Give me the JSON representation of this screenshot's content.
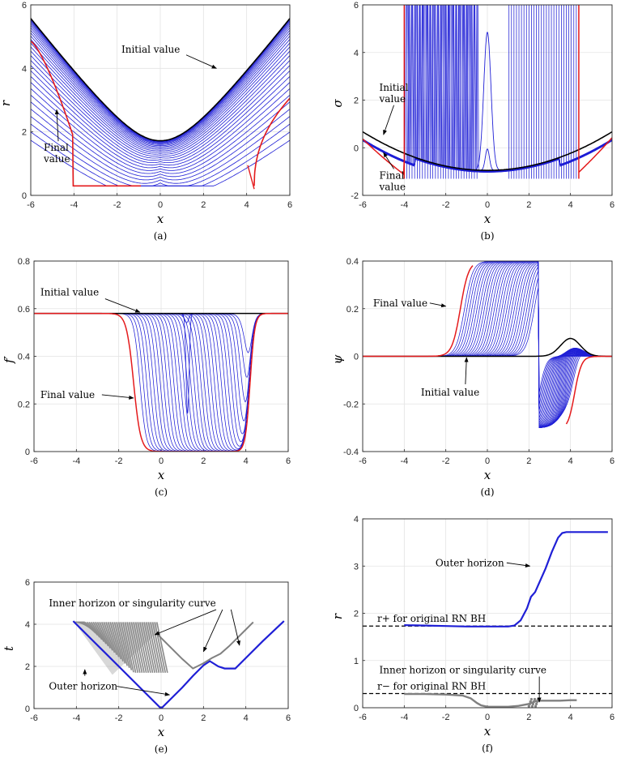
{
  "chart_data": [
    {
      "id": "a",
      "type": "line",
      "caption": "(a)",
      "xlabel": "x",
      "ylabel": "r",
      "xlim": [
        -6,
        6
      ],
      "ylim": [
        0,
        6
      ],
      "xticks": [
        "-6",
        "-4",
        "-2",
        "0",
        "2",
        "4",
        "6"
      ],
      "yticks": [
        "0",
        "2",
        "4",
        "6"
      ],
      "annotations": [
        {
          "text": "Initial value",
          "x": -1.8,
          "y": 4.5,
          "ax": 2.6,
          "ay": 4.0
        },
        {
          "lines": [
            "Final",
            "value"
          ],
          "x": -5.4,
          "y": 1.4,
          "ax": -4.8,
          "ay": 2.7
        }
      ]
    },
    {
      "id": "b",
      "type": "line",
      "caption": "(b)",
      "xlabel": "x",
      "ylabel": "σ",
      "xlim": [
        -6,
        6
      ],
      "ylim": [
        -2,
        6
      ],
      "xticks": [
        "-6",
        "-4",
        "-2",
        "0",
        "2",
        "4",
        "6"
      ],
      "yticks": [
        "-2",
        "0",
        "2",
        "4",
        "6"
      ],
      "annotations": [
        {
          "lines": [
            "Initial",
            "value"
          ],
          "x": -5.2,
          "y": 2.4,
          "ax": -5.0,
          "ay": 0.55
        },
        {
          "lines": [
            "Final",
            "value"
          ],
          "x": -5.2,
          "y": -1.3,
          "ax": -5.0,
          "ay": -0.2
        }
      ]
    },
    {
      "id": "c",
      "type": "line",
      "caption": "(c)",
      "xlabel": "x",
      "ylabel": "f′",
      "xlim": [
        -6,
        6
      ],
      "ylim": [
        0,
        0.8
      ],
      "xticks": [
        "-6",
        "-4",
        "-2",
        "0",
        "2",
        "4",
        "6"
      ],
      "yticks": [
        "0",
        "0.2",
        "0.4",
        "0.6",
        "0.8"
      ],
      "annotations": [
        {
          "text": "Initial value",
          "x": -5.7,
          "y": 0.655,
          "ax": -1.0,
          "ay": 0.585
        },
        {
          "text": "Final value",
          "x": -5.7,
          "y": 0.225,
          "ax": -1.3,
          "ay": 0.225
        }
      ]
    },
    {
      "id": "d",
      "type": "line",
      "caption": "(d)",
      "xlabel": "x",
      "ylabel": "ψ",
      "xlim": [
        -6,
        6
      ],
      "ylim": [
        -0.4,
        0.4
      ],
      "xticks": [
        "-6",
        "-4",
        "-2",
        "0",
        "2",
        "4",
        "6"
      ],
      "yticks": [
        "-0.4",
        "-0.2",
        "0",
        "0.2",
        "0.4"
      ],
      "annotations": [
        {
          "text": "Final value",
          "x": -5.5,
          "y": 0.21,
          "ax": -2.0,
          "ay": 0.21
        },
        {
          "text": "Initial value",
          "x": -3.2,
          "y": -0.165,
          "ax": -1.0,
          "ay": -0.005
        }
      ]
    },
    {
      "id": "e",
      "type": "scatter",
      "caption": "(e)",
      "xlabel": "x",
      "ylabel": "t",
      "xlim": [
        -6,
        6
      ],
      "ylim": [
        0,
        6
      ],
      "xticks": [
        "-6",
        "-4",
        "-2",
        "0",
        "2",
        "4",
        "6"
      ],
      "yticks": [
        "0",
        "2",
        "4",
        "6"
      ],
      "series": [
        {
          "name": "Outer horizon",
          "color": "#1f1fd6",
          "x": [
            -4.15,
            -3,
            -2,
            -1,
            0,
            1,
            1.5,
            2,
            2.3,
            2.7,
            3.0,
            3.5,
            4,
            4.8,
            5.8
          ],
          "y": [
            4.15,
            3.0,
            2.0,
            1.0,
            0.0,
            1.0,
            1.55,
            2.05,
            2.25,
            2.0,
            1.9,
            1.9,
            2.4,
            3.2,
            4.15
          ]
        },
        {
          "name": "Inner horizon or singularity curve",
          "color": "#808080",
          "x": [
            -0.2,
            0.4,
            1.0,
            1.5,
            2.0,
            2.4,
            2.8,
            3.2,
            3.6,
            4.0,
            4.35
          ],
          "y": [
            3.55,
            2.95,
            2.35,
            1.9,
            2.15,
            2.4,
            2.6,
            2.95,
            3.35,
            3.75,
            4.1
          ]
        }
      ],
      "annotations": [
        {
          "text": "Inner horizon or singularity curve",
          "x": -5.3,
          "y": 4.85,
          "ax": [
            -0.3,
            2.0
          ],
          "ay": [
            3.5,
            2.7
          ]
        },
        {
          "text": "Outer horizon",
          "x": -5.3,
          "y": 0.9,
          "ax": 0.4,
          "ay": 0.65
        },
        {
          "text": "",
          "x": -3.6,
          "y": 1.55,
          "ax": -3.6,
          "ay": 3.55
        }
      ]
    },
    {
      "id": "f",
      "type": "scatter",
      "caption": "(f)",
      "xlabel": "x",
      "ylabel": "r",
      "xlim": [
        -6,
        6
      ],
      "ylim": [
        0,
        4
      ],
      "xticks": [
        "-6",
        "-4",
        "-2",
        "0",
        "2",
        "4",
        "6"
      ],
      "yticks": [
        "0",
        "1",
        "2",
        "3",
        "4"
      ],
      "hlines": [
        {
          "label": "r+ for original RN BH",
          "y": 1.73
        },
        {
          "label": "r− for original RN BH",
          "y": 0.3
        }
      ],
      "series": [
        {
          "name": "Outer horizon",
          "color": "#1f1fd6",
          "x": [
            -4.0,
            -3,
            -2,
            -1,
            0,
            1,
            1.3,
            1.6,
            1.9,
            2.1,
            2.3,
            2.5,
            2.8,
            3.1,
            3.4,
            3.6,
            3.8,
            4.5,
            5.8
          ],
          "y": [
            1.75,
            1.74,
            1.73,
            1.72,
            1.72,
            1.72,
            1.74,
            1.85,
            2.1,
            2.35,
            2.45,
            2.65,
            2.95,
            3.3,
            3.6,
            3.7,
            3.72,
            3.72,
            3.72
          ]
        },
        {
          "name": "Inner horizon or singularity curve",
          "color": "#808080",
          "x": [
            -4.0,
            -3,
            -2,
            -1.2,
            -0.8,
            -0.5,
            -0.3,
            0,
            0.5,
            1.0,
            1.5,
            2.0,
            2.4,
            3.0,
            3.5,
            4.0,
            4.3
          ],
          "y": [
            0.29,
            0.29,
            0.28,
            0.26,
            0.2,
            0.1,
            0.05,
            0.02,
            0.02,
            0.02,
            0.04,
            0.08,
            0.15,
            0.15,
            0.15,
            0.16,
            0.16
          ]
        }
      ],
      "annotations": [
        {
          "text": "Outer horizon",
          "x": -2.5,
          "y": 3.0,
          "ax": 2.05,
          "ay": 3.0
        },
        {
          "text": "Inner horizon or singularity curve",
          "x": -5.2,
          "y": 0.73,
          "ax": 2.5,
          "ay": 0.12
        }
      ]
    }
  ]
}
